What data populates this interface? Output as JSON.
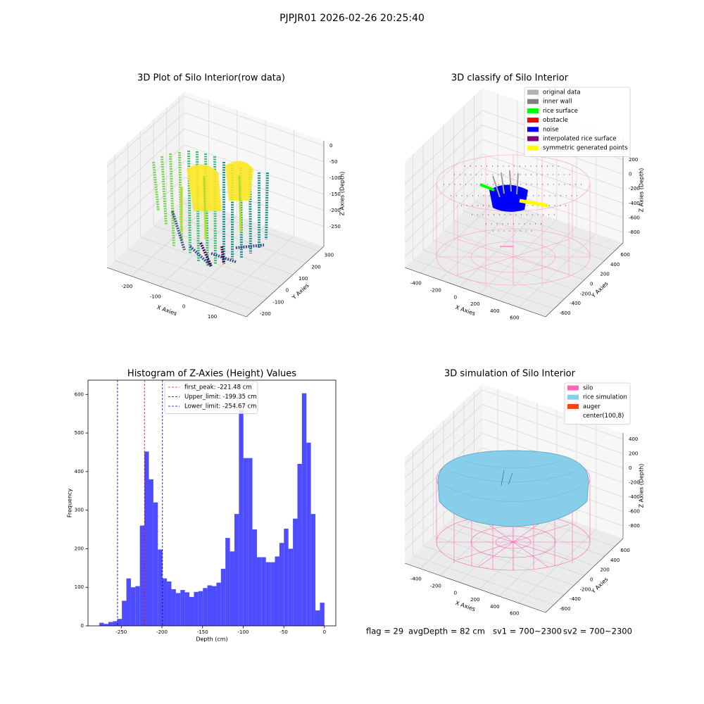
{
  "suptitle": "PJPJR01 2026-02-26 20:25:40",
  "status": [
    "flag = 29",
    "avgDepth = 82 cm",
    "sv1 = 700~2300",
    "sv2 = 700~2300"
  ],
  "chart_data": [
    {
      "type": "scatter3d",
      "title": "3D Plot of Silo Interior(row data)",
      "xlabel": "X Axies",
      "ylabel": "Y Axies",
      "zlabel": "Z Axies (Depth)",
      "xlim": [
        -285,
        205
      ],
      "ylim": [
        -260,
        340
      ],
      "zlim": [
        -311,
        15
      ],
      "xticks": [
        -200,
        -100,
        0,
        100
      ],
      "yticks": [
        -200,
        -100,
        0,
        100,
        200,
        300
      ],
      "zticks": [
        -250,
        -200,
        -150,
        -100,
        -50,
        0
      ]
    },
    {
      "type": "scatter3d",
      "title": "3D classify of Silo Interior",
      "xlabel": "X Axies",
      "ylabel": "Y Axies",
      "zlabel": "Z Axies (Depth)",
      "xlim": [
        -557,
        873
      ],
      "ylim": [
        -760,
        760
      ],
      "zlim": [
        -946,
        510
      ],
      "xticks": [
        -400,
        -200,
        0,
        200,
        400,
        600
      ],
      "yticks": [
        -600,
        -400,
        -200,
        0,
        200,
        400,
        600
      ],
      "zticks": [
        -800,
        -600,
        -400,
        -200,
        0,
        200
      ],
      "legend": [
        {
          "name": "original data",
          "color": "#b0b0b0"
        },
        {
          "name": "inner wall",
          "color": "#808080"
        },
        {
          "name": "rice surface",
          "color": "#00ff00"
        },
        {
          "name": "obstacle",
          "color": "#ff0000"
        },
        {
          "name": "noise",
          "color": "#0000ff"
        },
        {
          "name": "interpolated rice surface",
          "color": "#800080"
        },
        {
          "name": "symmetric generated points",
          "color": "#ffff00"
        }
      ]
    },
    {
      "type": "histogram",
      "title": "Histogram of Z-Axies (Height) Values",
      "xlabel": "Depth (cm)",
      "ylabel": "Frequency",
      "color": "#4d4dff",
      "xlim": [
        -291,
        14
      ],
      "ylim": [
        0,
        637
      ],
      "xticks": [
        -250,
        -200,
        -150,
        -100,
        -50,
        0
      ],
      "yticks": [
        0,
        100,
        200,
        300,
        400,
        500,
        600
      ],
      "bins": [
        -277,
        -271.46,
        -265.92,
        -260.38,
        -254.84,
        -249.3,
        -243.76,
        -238.22,
        -232.68,
        -227.14,
        -221.6,
        -216.06,
        -210.52,
        -204.98,
        -199.44,
        -193.9,
        -188.36,
        -182.82,
        -177.28,
        -171.74,
        -166.2,
        -160.66,
        -155.12,
        -149.58,
        -144.04,
        -138.5,
        -132.96,
        -127.42,
        -121.88,
        -116.34,
        -110.8,
        -105.26,
        -99.72,
        -94.18,
        -88.64,
        -83.1,
        -77.56,
        -72.02,
        -66.48,
        -60.94,
        -55.4,
        -49.86,
        -44.32,
        -38.78,
        -33.24,
        -27.7,
        -22.16,
        -16.62,
        -11.08,
        -5.54,
        0
      ],
      "values": [
        8,
        5,
        10,
        12,
        18,
        65,
        123,
        100,
        103,
        260,
        452,
        380,
        320,
        198,
        123,
        115,
        95,
        85,
        93,
        87,
        75,
        88,
        90,
        98,
        105,
        103,
        112,
        148,
        228,
        193,
        290,
        560,
        435,
        435,
        250,
        178,
        178,
        165,
        165,
        180,
        215,
        252,
        200,
        278,
        420,
        603,
        475,
        290,
        40,
        60
      ],
      "vlines": [
        {
          "name": "first_peak: -221.48 cm",
          "value": -221.48,
          "color": "#ff0000"
        },
        {
          "name": "Upper_limit: -199.35 cm",
          "value": -199.35,
          "color": "#00008b"
        },
        {
          "name": "Lower_limit: -254.67 cm",
          "value": -254.67,
          "color": "#00008b"
        }
      ]
    },
    {
      "type": "surface3d",
      "title": "3D simulation of Silo Interior",
      "xlabel": "X Axies",
      "ylabel": "Y Axies",
      "zlabel": "Z Axies (Depth)",
      "xlim": [
        -557,
        873
      ],
      "ylim": [
        -760,
        760
      ],
      "zlim": [
        -976,
        487
      ],
      "xticks": [
        -400,
        -200,
        0,
        200,
        400,
        600
      ],
      "yticks": [
        -600,
        -400,
        -200,
        0,
        200,
        400,
        600
      ],
      "zticks": [
        -800,
        -600,
        -400,
        -200,
        0,
        200,
        400
      ],
      "legend": [
        {
          "name": "silo",
          "color": "#ff69b4"
        },
        {
          "name": "rice simulation",
          "color": "#87ceeb"
        },
        {
          "name": "auger",
          "color": "#ff4500"
        },
        {
          "name": "center(100,8)",
          "color": "#ffffff"
        }
      ]
    }
  ]
}
